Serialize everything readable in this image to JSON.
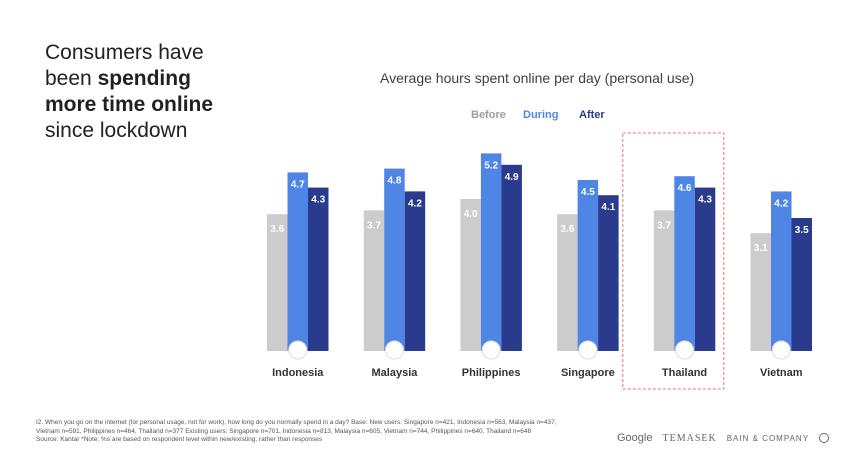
{
  "headline": {
    "line1": "Consumers have",
    "line2_pre": "been ",
    "line2_bold": "spending",
    "line3_bold": "more time online",
    "line4": "since lockdown"
  },
  "chart_data": {
    "type": "bar",
    "title": "Average hours spent online per day (personal use)",
    "categories": [
      "Indonesia",
      "Malaysia",
      "Philippines",
      "Singapore",
      "Thailand",
      "Vietnam"
    ],
    "series": [
      {
        "name": "Before",
        "color": "#cccccc",
        "label_color": "#9e9e9e",
        "values": [
          3.6,
          3.7,
          4.0,
          3.6,
          3.7,
          3.1
        ]
      },
      {
        "name": "During",
        "color": "#4f86e6",
        "label_color": "#4f86e6",
        "values": [
          4.7,
          4.8,
          5.2,
          4.5,
          4.6,
          4.2
        ]
      },
      {
        "name": "After",
        "color": "#2a3a8c",
        "label_color": "#2a3a8c",
        "values": [
          4.3,
          4.2,
          4.9,
          4.1,
          4.3,
          3.5
        ]
      }
    ],
    "highlighted": "Thailand",
    "legend": "top",
    "ylim": [
      0,
      5.5
    ]
  },
  "footnote": {
    "line1": "I2. When you go on the internet (for personal usage, not for work), how long do you normally spend in a day? Base: New users: Singapore n=421, Indonesia n=563, Malaysia n=437,",
    "line2": "Vietnam n=591, Philippines n=464, Thailand n=377 Existing users: Singapore n=701, Indonesia n=813, Malaysia n=605, Vietnam n=744, Philippines n=640, Thailand n=648",
    "line3": "Source: Kantar  *Note: %s are based on respondent level within new/existing, rather than responses"
  },
  "logos": [
    "Google",
    "TEMASEK",
    "BAIN & COMPANY"
  ]
}
